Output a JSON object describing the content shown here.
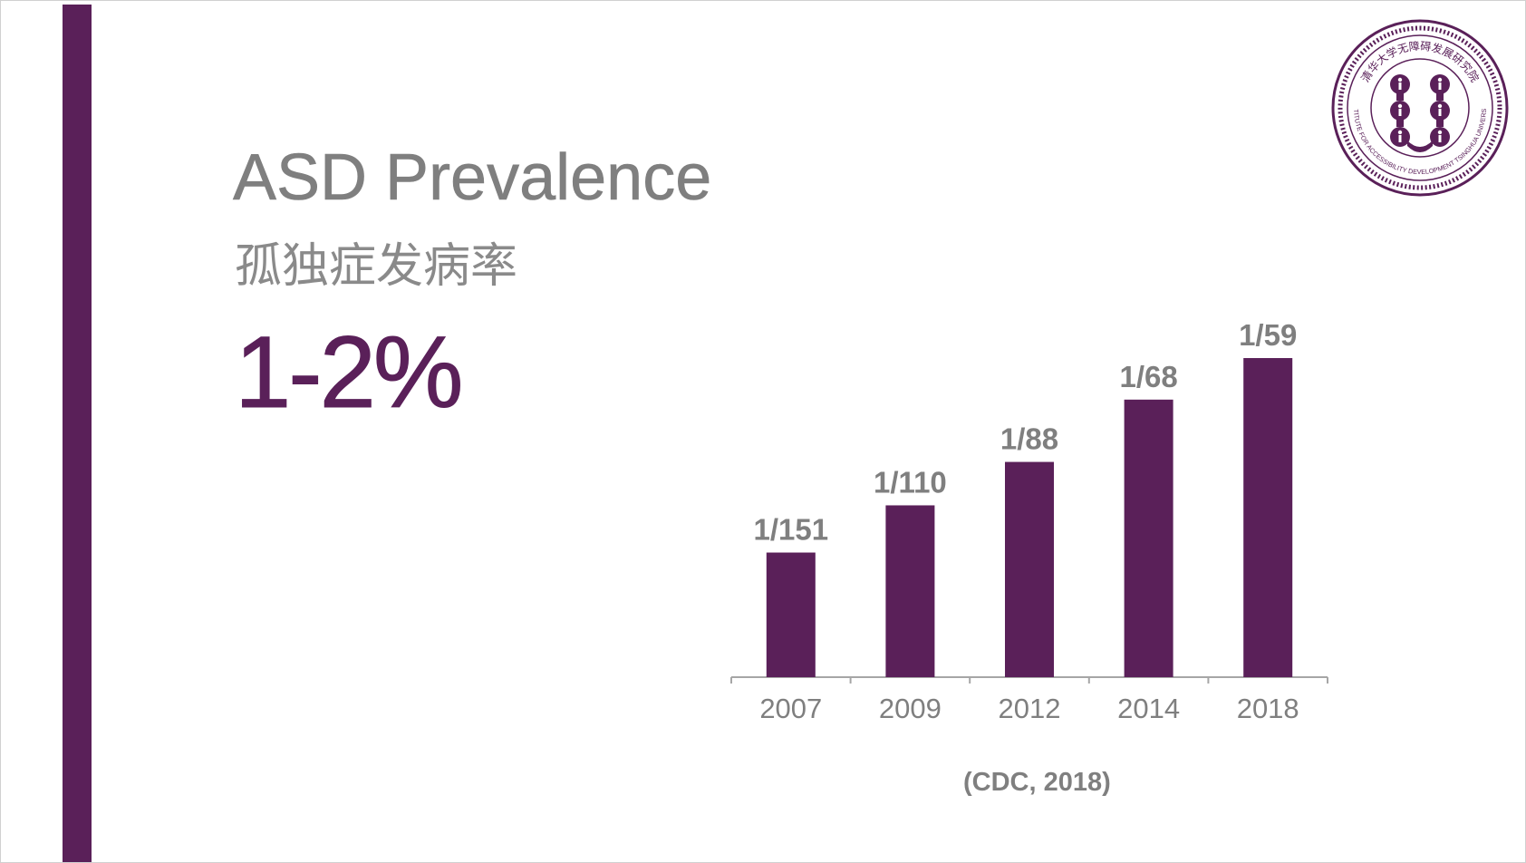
{
  "slide": {
    "title": "ASD Prevalence",
    "subtitle": "孤独症发病率",
    "big_stat": "1-2%",
    "source": "(CDC, 2018)"
  },
  "logo": {
    "text_cn": "清华大学无障碍发展研究院",
    "text_en": "INSTITUTE FOR ACCESSIBILITY DEVELOPMENT TSINGHUA UNIVERSITY"
  },
  "colors": {
    "accent": "#5a2059",
    "text_gray": "#7f7f7f",
    "axis": "#a6a6a6"
  },
  "chart_data": {
    "type": "bar",
    "categories": [
      "2007",
      "2009",
      "2012",
      "2014",
      "2018"
    ],
    "values": [
      0.0066,
      0.0091,
      0.0114,
      0.0147,
      0.0169
    ],
    "data_labels": [
      "1/151",
      "1/110",
      "1/88",
      "1/68",
      "1/59"
    ],
    "title": "",
    "xlabel": "",
    "ylabel": "",
    "ylim": [
      0,
      0.02
    ],
    "grid": false,
    "legend": "none"
  }
}
